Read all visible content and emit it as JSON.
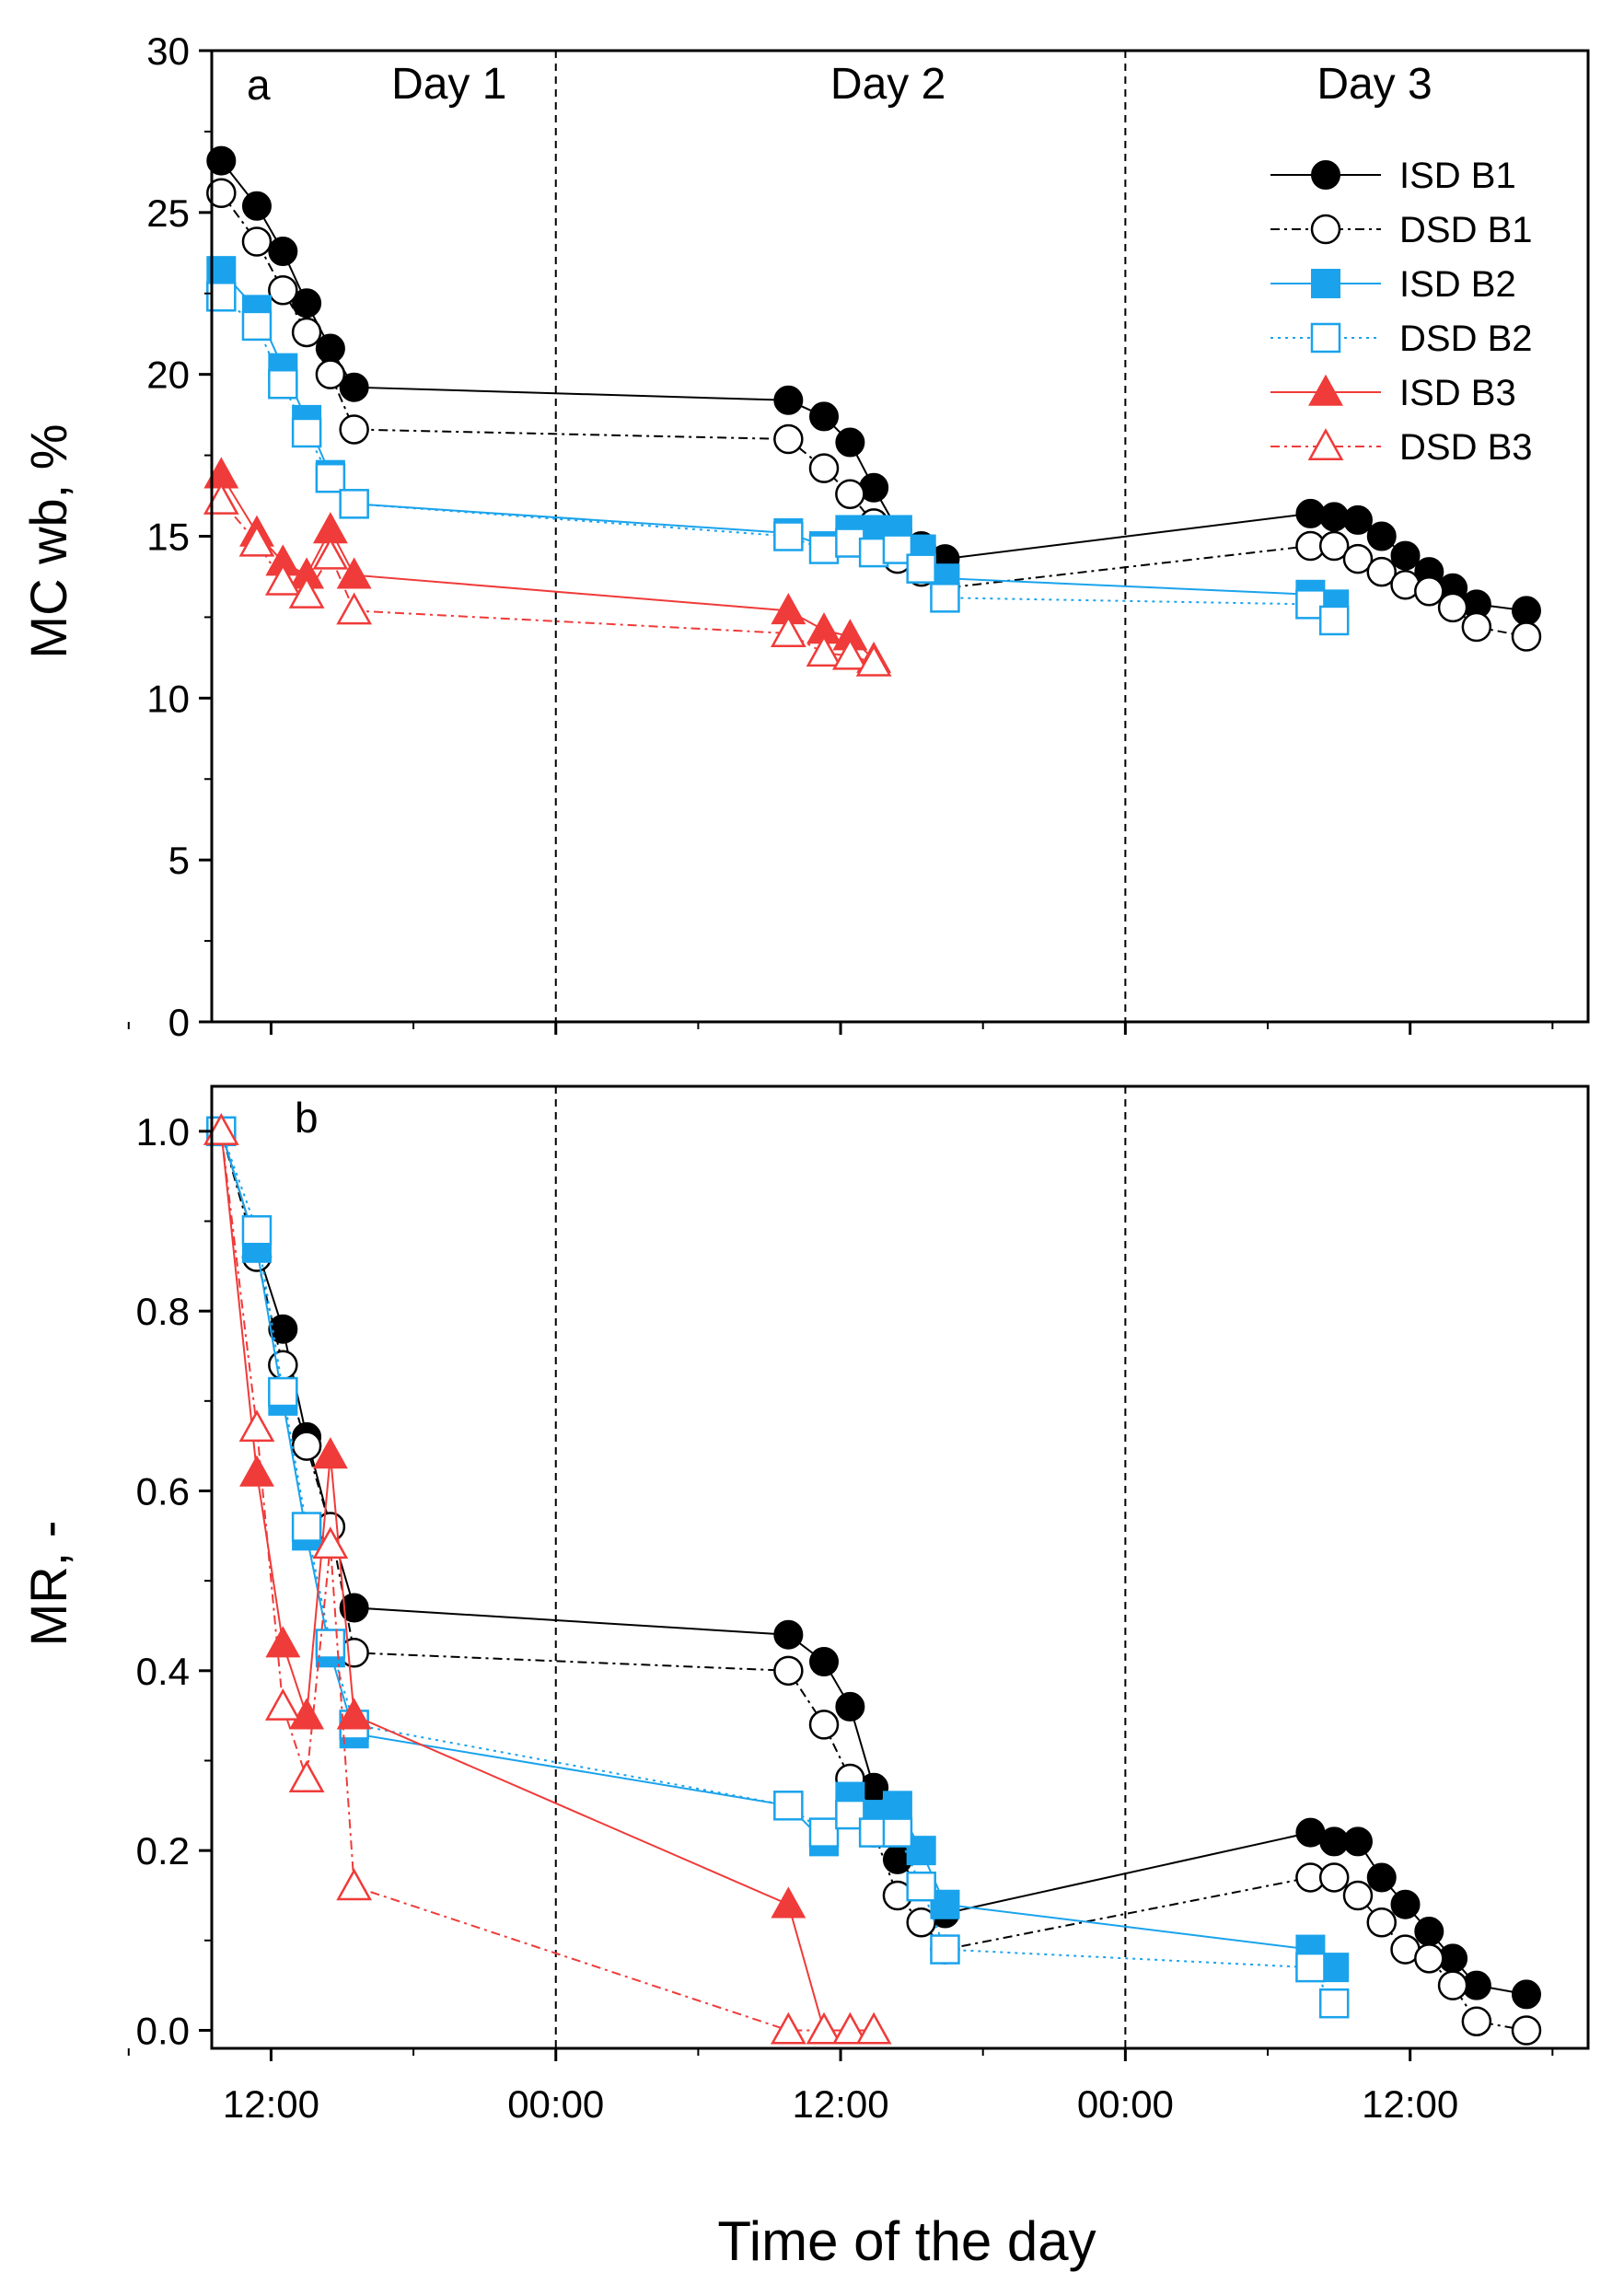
{
  "chart_data": [
    {
      "id": "panel-a",
      "type": "line",
      "panel_label": "a",
      "ylabel": "MC wb, %",
      "ylim": [
        0,
        30
      ],
      "yticks": [
        0,
        5,
        10,
        15,
        20,
        25,
        30
      ],
      "xlim": [
        9.5,
        67.5
      ],
      "xticks": [
        {
          "v": 12,
          "label": "12:00"
        },
        {
          "v": 24,
          "label": "00:00"
        },
        {
          "v": 36,
          "label": "12:00"
        },
        {
          "v": 48,
          "label": "00:00"
        },
        {
          "v": 60,
          "label": "12:00"
        }
      ],
      "day_lines": [
        24,
        48
      ],
      "day_labels": [
        {
          "x": 19.5,
          "label": "Day 1"
        },
        {
          "x": 38,
          "label": "Day 2"
        },
        {
          "x": 58.5,
          "label": "Day 3"
        }
      ],
      "legend_position": "top-right",
      "series": [
        {
          "name": "ISD B1",
          "color": "#000000",
          "marker": "circle",
          "filled": true,
          "dash": "",
          "points": [
            [
              9.9,
              26.6
            ],
            [
              11.4,
              25.2
            ],
            [
              12.5,
              23.8
            ],
            [
              13.5,
              22.2
            ],
            [
              14.5,
              20.8
            ],
            [
              15.5,
              19.6
            ],
            [
              33.8,
              19.2
            ],
            [
              35.3,
              18.7
            ],
            [
              36.4,
              17.9
            ],
            [
              37.4,
              16.5
            ],
            [
              38.4,
              15.2
            ],
            [
              39.4,
              14.7
            ],
            [
              40.4,
              14.3
            ],
            [
              55.8,
              15.7
            ],
            [
              56.8,
              15.6
            ],
            [
              57.8,
              15.5
            ],
            [
              58.8,
              15.0
            ],
            [
              59.8,
              14.4
            ],
            [
              60.8,
              13.9
            ],
            [
              61.8,
              13.4
            ],
            [
              62.8,
              12.9
            ],
            [
              64.9,
              12.7
            ]
          ]
        },
        {
          "name": "DSD B1",
          "color": "#000000",
          "marker": "circle",
          "filled": false,
          "dash": "10,5,3,5",
          "points": [
            [
              9.9,
              25.6
            ],
            [
              11.4,
              24.1
            ],
            [
              12.5,
              22.6
            ],
            [
              13.5,
              21.3
            ],
            [
              14.5,
              20.0
            ],
            [
              15.5,
              18.3
            ],
            [
              33.8,
              18.0
            ],
            [
              35.3,
              17.1
            ],
            [
              36.4,
              16.3
            ],
            [
              37.4,
              15.4
            ],
            [
              38.4,
              14.3
            ],
            [
              39.4,
              13.9
            ],
            [
              40.4,
              13.4
            ],
            [
              55.8,
              14.7
            ],
            [
              56.8,
              14.7
            ],
            [
              57.8,
              14.3
            ],
            [
              58.8,
              13.9
            ],
            [
              59.8,
              13.5
            ],
            [
              60.8,
              13.3
            ],
            [
              61.8,
              12.8
            ],
            [
              62.8,
              12.2
            ],
            [
              64.9,
              11.9
            ]
          ]
        },
        {
          "name": "ISD B2",
          "color": "#1aa3ec",
          "marker": "square",
          "filled": true,
          "dash": "",
          "points": [
            [
              9.9,
              23.2
            ],
            [
              11.4,
              22.0
            ],
            [
              12.5,
              20.2
            ],
            [
              13.5,
              18.6
            ],
            [
              14.5,
              16.9
            ],
            [
              15.5,
              16.0
            ],
            [
              33.8,
              15.1
            ],
            [
              35.3,
              14.7
            ],
            [
              36.4,
              15.2
            ],
            [
              37.4,
              15.2
            ],
            [
              38.4,
              15.2
            ],
            [
              39.4,
              14.6
            ],
            [
              40.4,
              13.7
            ],
            [
              55.8,
              13.2
            ],
            [
              56.8,
              12.9
            ]
          ]
        },
        {
          "name": "DSD B2",
          "color": "#1aa3ec",
          "marker": "square",
          "filled": false,
          "dash": "3,5",
          "points": [
            [
              9.9,
              22.4
            ],
            [
              11.4,
              21.5
            ],
            [
              12.5,
              19.7
            ],
            [
              13.5,
              18.2
            ],
            [
              14.5,
              16.8
            ],
            [
              15.5,
              16.0
            ],
            [
              33.8,
              15.0
            ],
            [
              35.3,
              14.6
            ],
            [
              36.4,
              14.8
            ],
            [
              37.4,
              14.5
            ],
            [
              38.4,
              14.6
            ],
            [
              39.4,
              14.0
            ],
            [
              40.4,
              13.1
            ],
            [
              55.8,
              12.9
            ],
            [
              56.8,
              12.4
            ]
          ]
        },
        {
          "name": "ISD B3",
          "color": "#ef3b39",
          "marker": "triangle",
          "filled": true,
          "dash": "",
          "points": [
            [
              9.9,
              16.9
            ],
            [
              11.4,
              15.1
            ],
            [
              12.5,
              14.2
            ],
            [
              13.5,
              13.8
            ],
            [
              14.5,
              15.2
            ],
            [
              15.5,
              13.8
            ],
            [
              33.8,
              12.7
            ],
            [
              35.3,
              12.1
            ],
            [
              36.4,
              11.9
            ],
            [
              37.4,
              11.2
            ]
          ]
        },
        {
          "name": "DSD B3",
          "color": "#ef3b39",
          "marker": "triangle",
          "filled": false,
          "dash": "10,5,3,5",
          "points": [
            [
              9.9,
              16.1
            ],
            [
              11.4,
              14.8
            ],
            [
              12.5,
              13.6
            ],
            [
              13.5,
              13.2
            ],
            [
              14.5,
              14.4
            ],
            [
              15.5,
              12.7
            ],
            [
              33.8,
              12.0
            ],
            [
              35.3,
              11.4
            ],
            [
              36.4,
              11.3
            ],
            [
              37.4,
              11.1
            ]
          ]
        }
      ]
    },
    {
      "id": "panel-b",
      "type": "line",
      "panel_label": "b",
      "ylabel": "MR, -",
      "ylim": [
        -0.02,
        1.05
      ],
      "yticks": [
        0.0,
        0.2,
        0.4,
        0.6,
        0.8,
        1.0
      ],
      "ytick_labels": [
        "0.0",
        "0.2",
        "0.4",
        "0.6",
        "0.8",
        "1.0"
      ],
      "xlim": [
        9.5,
        67.5
      ],
      "xticks": [
        {
          "v": 12,
          "label": "12:00"
        },
        {
          "v": 24,
          "label": "00:00"
        },
        {
          "v": 36,
          "label": "12:00"
        },
        {
          "v": 48,
          "label": "00:00"
        },
        {
          "v": 60,
          "label": "12:00"
        }
      ],
      "xlabel": "Time of the day",
      "day_lines": [
        24,
        48
      ],
      "series": [
        {
          "name": "ISD B1",
          "color": "#000000",
          "marker": "circle",
          "filled": true,
          "dash": "",
          "points": [
            [
              9.9,
              1.0
            ],
            [
              11.4,
              0.87
            ],
            [
              12.5,
              0.78
            ],
            [
              13.5,
              0.66
            ],
            [
              14.5,
              0.56
            ],
            [
              15.5,
              0.47
            ],
            [
              33.8,
              0.44
            ],
            [
              35.3,
              0.41
            ],
            [
              36.4,
              0.36
            ],
            [
              37.4,
              0.27
            ],
            [
              38.4,
              0.19
            ],
            [
              39.4,
              0.16
            ],
            [
              40.4,
              0.13
            ],
            [
              55.8,
              0.22
            ],
            [
              56.8,
              0.21
            ],
            [
              57.8,
              0.21
            ],
            [
              58.8,
              0.17
            ],
            [
              59.8,
              0.14
            ],
            [
              60.8,
              0.11
            ],
            [
              61.8,
              0.08
            ],
            [
              62.8,
              0.05
            ],
            [
              64.9,
              0.04
            ]
          ]
        },
        {
          "name": "DSD B1",
          "color": "#000000",
          "marker": "circle",
          "filled": false,
          "dash": "10,5,3,5",
          "points": [
            [
              9.9,
              1.0
            ],
            [
              11.4,
              0.86
            ],
            [
              12.5,
              0.74
            ],
            [
              13.5,
              0.65
            ],
            [
              14.5,
              0.56
            ],
            [
              15.5,
              0.42
            ],
            [
              33.8,
              0.4
            ],
            [
              35.3,
              0.34
            ],
            [
              36.4,
              0.28
            ],
            [
              37.4,
              0.22
            ],
            [
              38.4,
              0.15
            ],
            [
              39.4,
              0.12
            ],
            [
              40.4,
              0.09
            ],
            [
              55.8,
              0.17
            ],
            [
              56.8,
              0.17
            ],
            [
              57.8,
              0.15
            ],
            [
              58.8,
              0.12
            ],
            [
              59.8,
              0.09
            ],
            [
              60.8,
              0.08
            ],
            [
              61.8,
              0.05
            ],
            [
              62.8,
              0.01
            ],
            [
              64.9,
              0.0
            ]
          ]
        },
        {
          "name": "ISD B2",
          "color": "#1aa3ec",
          "marker": "square",
          "filled": true,
          "dash": "",
          "points": [
            [
              9.9,
              1.0
            ],
            [
              11.4,
              0.87
            ],
            [
              12.5,
              0.7
            ],
            [
              13.5,
              0.55
            ],
            [
              14.5,
              0.42
            ],
            [
              15.5,
              0.33
            ],
            [
              33.8,
              0.25
            ],
            [
              35.3,
              0.21
            ],
            [
              36.4,
              0.26
            ],
            [
              37.4,
              0.24
            ],
            [
              38.4,
              0.25
            ],
            [
              39.4,
              0.2
            ],
            [
              40.4,
              0.14
            ],
            [
              55.8,
              0.09
            ],
            [
              56.8,
              0.07
            ]
          ]
        },
        {
          "name": "DSD B2",
          "color": "#1aa3ec",
          "marker": "square",
          "filled": false,
          "dash": "3,5",
          "points": [
            [
              9.9,
              1.0
            ],
            [
              11.4,
              0.89
            ],
            [
              12.5,
              0.71
            ],
            [
              13.5,
              0.56
            ],
            [
              14.5,
              0.43
            ],
            [
              15.5,
              0.34
            ],
            [
              33.8,
              0.25
            ],
            [
              35.3,
              0.22
            ],
            [
              36.4,
              0.24
            ],
            [
              37.4,
              0.22
            ],
            [
              38.4,
              0.22
            ],
            [
              39.4,
              0.16
            ],
            [
              40.4,
              0.09
            ],
            [
              55.8,
              0.07
            ],
            [
              56.8,
              0.03
            ]
          ]
        },
        {
          "name": "ISD B3",
          "color": "#ef3b39",
          "marker": "triangle",
          "filled": true,
          "dash": "",
          "points": [
            [
              9.9,
              1.0
            ],
            [
              11.4,
              0.62
            ],
            [
              12.5,
              0.43
            ],
            [
              13.5,
              0.35
            ],
            [
              14.5,
              0.64
            ],
            [
              15.5,
              0.35
            ],
            [
              33.8,
              0.14
            ],
            [
              35.3,
              0.0
            ],
            [
              36.4,
              0.0
            ],
            [
              37.4,
              0.0
            ]
          ]
        },
        {
          "name": "DSD B3",
          "color": "#ef3b39",
          "marker": "triangle",
          "filled": false,
          "dash": "10,5,3,5",
          "points": [
            [
              9.9,
              1.0
            ],
            [
              11.4,
              0.67
            ],
            [
              12.5,
              0.36
            ],
            [
              13.5,
              0.28
            ],
            [
              14.5,
              0.54
            ],
            [
              15.5,
              0.16
            ],
            [
              33.8,
              0.0
            ],
            [
              35.3,
              0.0
            ],
            [
              36.4,
              0.0
            ],
            [
              37.4,
              0.0
            ]
          ]
        }
      ]
    }
  ]
}
